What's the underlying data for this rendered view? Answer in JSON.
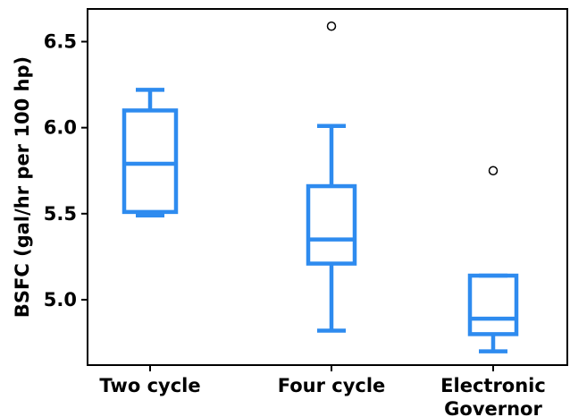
{
  "chart_data": {
    "type": "box",
    "title": "",
    "xlabel": "",
    "ylabel": "BSFC (gal/hr per 100 hp)",
    "categories": [
      "Two cycle",
      "Four cycle",
      "Electronic Governor"
    ],
    "category_lines": [
      [
        "Two cycle"
      ],
      [
        "Four cycle"
      ],
      [
        "Electronic",
        "Governor"
      ]
    ],
    "ylim": [
      4.62,
      6.69
    ],
    "yticks": [
      "5.0",
      "5.5",
      "6.0",
      "6.5"
    ],
    "ytick_values": [
      5.0,
      5.5,
      6.0,
      6.5
    ],
    "grid": false,
    "legend": "none",
    "color": "#2e8bef",
    "boxes": [
      {
        "category": "Two cycle",
        "whisker_low": 5.49,
        "q1": 5.51,
        "median": 5.79,
        "q3": 6.1,
        "whisker_high": 6.22,
        "outliers": []
      },
      {
        "category": "Four cycle",
        "whisker_low": 4.82,
        "q1": 5.21,
        "median": 5.35,
        "q3": 5.66,
        "whisker_high": 6.01,
        "outliers": [
          6.59
        ]
      },
      {
        "category": "Electronic Governor",
        "whisker_low": 4.7,
        "q1": 4.8,
        "median": 4.89,
        "q3": 5.14,
        "whisker_high": 5.14,
        "outliers": [
          5.75
        ]
      }
    ]
  }
}
